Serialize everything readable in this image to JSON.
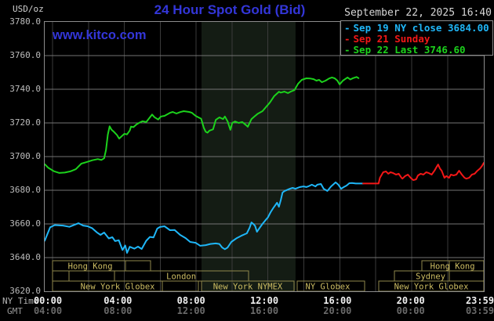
{
  "header": {
    "unit_label": "USD/oz",
    "title": "24 Hour Spot Gold (Bid)",
    "datetime": "September 22, 2025 16:40",
    "watermark": "www.kitco.com",
    "legend": [
      {
        "dash": "-",
        "label": "Sep 19 NY close 3684.00",
        "color": "#1fb6f7"
      },
      {
        "dash": "-",
        "label": "Sep 21 Sunday",
        "color": "#f21717"
      },
      {
        "dash": "-",
        "label": "Sep 22 Last 3746.60",
        "color": "#1cd21c"
      }
    ]
  },
  "colors": {
    "background": "#000000",
    "title_blue": "#3336d9",
    "frame": "#8c8c8c",
    "hgrid": "#757575",
    "vgrid": "#3a3a3a",
    "band": "#141c14",
    "session_border": "#8f874b",
    "session_text": "#cdbd63",
    "series_prev_close": "#1fb6f7",
    "series_sunday": "#f21717",
    "series_today": "#1cd21c"
  },
  "axis": {
    "ny_time_label": "NY Time",
    "gmt_label": "GMT",
    "ny_ticks": [
      "00:00",
      "04:00",
      "08:00",
      "12:00",
      "16:00",
      "20:00",
      "23:59"
    ],
    "gmt_ticks": [
      "04:00",
      "08:00",
      "12:00",
      "16:00",
      "20:00",
      "00:00",
      "03:59"
    ],
    "tick_hours": [
      0,
      4,
      8,
      12,
      16,
      20,
      23.983
    ],
    "y_tick_values": [
      3780,
      3760,
      3740,
      3720,
      3700,
      3680,
      3660,
      3640,
      3620
    ],
    "y_tick_labels": [
      "3780.0",
      "3760.0",
      "3740.0",
      "3720.0",
      "3700.0",
      "3680.0",
      "3660.0",
      "3640.0",
      "3620.0"
    ]
  },
  "sessions": {
    "rows": [
      [
        {
          "from": 0.43,
          "to": 4.41,
          "label": "Hong Kong",
          "labelAt": 2.49
        },
        {
          "from": 4.41,
          "to": 5.79,
          "label": ""
        },
        {
          "from": 20.61,
          "to": 24,
          "label": "Hong Kong",
          "labelAt": 22.29,
          "divider": 22.11
        }
      ],
      [
        {
          "from": 0.43,
          "to": 1.33,
          "label": ""
        },
        {
          "from": 1.33,
          "to": 3.81,
          "label": ""
        },
        {
          "from": 3.81,
          "to": 11.14,
          "label": "London",
          "labelAt": 7.46
        },
        {
          "from": 19.11,
          "to": 24,
          "label": "Sydney",
          "labelAt": 21.09,
          "divider": 22.11
        }
      ],
      [
        {
          "from": 0.43,
          "to": 6.43,
          "label": "New York Globex",
          "labelAt": 3.99
        },
        {
          "from": 6.43,
          "to": 8.4,
          "label": ""
        },
        {
          "from": 8.57,
          "to": 13.63,
          "label": "New York NYMEX",
          "labelAt": 11.1
        },
        {
          "from": 13.8,
          "to": 17.49,
          "label": "NY Globex",
          "labelAt": 15.47
        },
        {
          "from": 18.26,
          "to": 24,
          "label": "New York Globex",
          "labelAt": 21.13
        }
      ]
    ]
  },
  "chart_data": {
    "type": "line",
    "title": "24 Hour Spot Gold (Bid)",
    "xlabel": "NY Time (hours 00:00-23:59)",
    "ylabel": "USD/oz",
    "ylim": [
      3620,
      3780
    ],
    "xlim_hours": [
      0,
      24
    ],
    "grid": true,
    "ygrid_values": [
      3640,
      3660,
      3680,
      3700,
      3720,
      3740,
      3760
    ],
    "vgrid_hours": [
      0.43,
      2.39,
      4.35,
      6.32,
      8.28,
      10.24,
      12.2,
      14.17,
      16.13,
      18.09,
      20.06,
      22.02
    ],
    "nymex_band": {
      "from": 8.57,
      "to": 13.71
    },
    "series": [
      {
        "name": "Sep 22 (today, last 3746.60)",
        "color": "#1cd21c",
        "points": [
          [
            0,
            3695.5
          ],
          [
            0.2,
            3693.3
          ],
          [
            0.5,
            3691.3
          ],
          [
            0.8,
            3690.3
          ],
          [
            1.1,
            3690.5
          ],
          [
            1.4,
            3691.2
          ],
          [
            1.7,
            3692.5
          ],
          [
            2.0,
            3695.8
          ],
          [
            2.3,
            3696.8
          ],
          [
            2.6,
            3697.8
          ],
          [
            2.9,
            3698.5
          ],
          [
            3.1,
            3698.0
          ],
          [
            3.25,
            3699.0
          ],
          [
            3.35,
            3704.0
          ],
          [
            3.45,
            3713.0
          ],
          [
            3.55,
            3718.0
          ],
          [
            3.65,
            3716.0
          ],
          [
            3.8,
            3714.5
          ],
          [
            3.95,
            3712.8
          ],
          [
            4.07,
            3710.7
          ],
          [
            4.2,
            3712.0
          ],
          [
            4.35,
            3713.5
          ],
          [
            4.5,
            3713.2
          ],
          [
            4.65,
            3715.5
          ],
          [
            4.72,
            3717.8
          ],
          [
            4.85,
            3717.5
          ],
          [
            5.0,
            3719.0
          ],
          [
            5.15,
            3720.0
          ],
          [
            5.35,
            3721.0
          ],
          [
            5.55,
            3720.5
          ],
          [
            5.87,
            3725.0
          ],
          [
            6.0,
            3723.4
          ],
          [
            6.2,
            3722.0
          ],
          [
            6.35,
            3723.8
          ],
          [
            6.55,
            3724.2
          ],
          [
            6.85,
            3726.0
          ],
          [
            7.0,
            3726.5
          ],
          [
            7.2,
            3725.6
          ],
          [
            7.4,
            3726.4
          ],
          [
            7.6,
            3727.0
          ],
          [
            7.9,
            3726.5
          ],
          [
            8.05,
            3726.0
          ],
          [
            8.25,
            3724.2
          ],
          [
            8.4,
            3723.3
          ],
          [
            8.55,
            3722.5
          ],
          [
            8.7,
            3717.0
          ],
          [
            8.8,
            3714.8
          ],
          [
            8.9,
            3714.2
          ],
          [
            9.0,
            3715.4
          ],
          [
            9.2,
            3716.2
          ],
          [
            9.35,
            3721.8
          ],
          [
            9.55,
            3723.3
          ],
          [
            9.75,
            3722.3
          ],
          [
            9.85,
            3723.8
          ],
          [
            10.0,
            3720.9
          ],
          [
            10.15,
            3715.9
          ],
          [
            10.25,
            3720.0
          ],
          [
            10.4,
            3720.9
          ],
          [
            10.6,
            3720.0
          ],
          [
            10.8,
            3720.5
          ],
          [
            11.0,
            3718.7
          ],
          [
            11.1,
            3717.7
          ],
          [
            11.3,
            3722.3
          ],
          [
            11.45,
            3723.7
          ],
          [
            11.65,
            3725.5
          ],
          [
            11.9,
            3727.0
          ],
          [
            12.1,
            3729.5
          ],
          [
            12.3,
            3732.0
          ],
          [
            12.55,
            3736.0
          ],
          [
            12.8,
            3738.5
          ],
          [
            12.9,
            3738.0
          ],
          [
            13.1,
            3738.6
          ],
          [
            13.3,
            3737.7
          ],
          [
            13.45,
            3738.6
          ],
          [
            13.65,
            3739.5
          ],
          [
            13.85,
            3743.3
          ],
          [
            14.05,
            3745.6
          ],
          [
            14.3,
            3746.5
          ],
          [
            14.5,
            3746.4
          ],
          [
            14.7,
            3746.0
          ],
          [
            14.85,
            3745.1
          ],
          [
            15.0,
            3745.6
          ],
          [
            15.15,
            3744.2
          ],
          [
            15.35,
            3745.1
          ],
          [
            15.55,
            3746.4
          ],
          [
            15.7,
            3747.0
          ],
          [
            15.85,
            3746.5
          ],
          [
            16.0,
            3745.1
          ],
          [
            16.12,
            3742.9
          ],
          [
            16.3,
            3745.1
          ],
          [
            16.42,
            3746.0
          ],
          [
            16.55,
            3747.0
          ],
          [
            16.7,
            3745.8
          ],
          [
            16.85,
            3746.6
          ],
          [
            17.05,
            3747.3
          ],
          [
            17.15,
            3746.6
          ]
        ]
      },
      {
        "name": "Sep 19 NY close 3684.00",
        "color": "#1fb6f7",
        "points": [
          [
            0,
            3650.0
          ],
          [
            0.15,
            3654.0
          ],
          [
            0.3,
            3658.0
          ],
          [
            0.55,
            3659.3
          ],
          [
            1.0,
            3659.0
          ],
          [
            1.35,
            3658.3
          ],
          [
            1.65,
            3659.6
          ],
          [
            1.85,
            3660.4
          ],
          [
            2.1,
            3659.0
          ],
          [
            2.35,
            3658.6
          ],
          [
            2.6,
            3657.4
          ],
          [
            2.85,
            3655.0
          ],
          [
            3.05,
            3653.5
          ],
          [
            3.25,
            3654.9
          ],
          [
            3.5,
            3651.4
          ],
          [
            3.7,
            3652.1
          ],
          [
            3.85,
            3649.8
          ],
          [
            4.05,
            3650.3
          ],
          [
            4.25,
            3644.5
          ],
          [
            4.4,
            3647.2
          ],
          [
            4.5,
            3642.8
          ],
          [
            4.65,
            3646.4
          ],
          [
            4.9,
            3645.3
          ],
          [
            5.1,
            3646.5
          ],
          [
            5.3,
            3645.1
          ],
          [
            5.55,
            3650.0
          ],
          [
            5.75,
            3652.3
          ],
          [
            5.95,
            3652.0
          ],
          [
            6.15,
            3657.2
          ],
          [
            6.3,
            3658.2
          ],
          [
            6.55,
            3658.6
          ],
          [
            6.85,
            3656.3
          ],
          [
            7.1,
            3656.4
          ],
          [
            7.4,
            3653.5
          ],
          [
            7.7,
            3651.6
          ],
          [
            7.95,
            3649.3
          ],
          [
            8.25,
            3648.8
          ],
          [
            8.5,
            3647.0
          ],
          [
            8.8,
            3647.4
          ],
          [
            9.05,
            3648.1
          ],
          [
            9.35,
            3648.4
          ],
          [
            9.55,
            3648.1
          ],
          [
            9.7,
            3646.0
          ],
          [
            9.85,
            3645.0
          ],
          [
            10.0,
            3646.0
          ],
          [
            10.2,
            3649.3
          ],
          [
            10.5,
            3651.6
          ],
          [
            10.75,
            3653.0
          ],
          [
            11.05,
            3654.4
          ],
          [
            11.2,
            3657.7
          ],
          [
            11.3,
            3660.9
          ],
          [
            11.4,
            3660.0
          ],
          [
            11.5,
            3658.8
          ],
          [
            11.6,
            3655.3
          ],
          [
            11.75,
            3657.7
          ],
          [
            11.9,
            3660.0
          ],
          [
            12.05,
            3662.0
          ],
          [
            12.2,
            3663.9
          ],
          [
            12.35,
            3667.0
          ],
          [
            12.5,
            3669.6
          ],
          [
            12.7,
            3672.6
          ],
          [
            12.8,
            3670.2
          ],
          [
            12.9,
            3674.0
          ],
          [
            13.0,
            3678.6
          ],
          [
            13.1,
            3679.5
          ],
          [
            13.4,
            3680.9
          ],
          [
            13.55,
            3681.4
          ],
          [
            13.7,
            3680.9
          ],
          [
            13.95,
            3681.9
          ],
          [
            14.15,
            3682.3
          ],
          [
            14.3,
            3681.9
          ],
          [
            14.4,
            3682.3
          ],
          [
            14.6,
            3683.3
          ],
          [
            14.8,
            3682.3
          ],
          [
            14.9,
            3683.3
          ],
          [
            15.1,
            3683.7
          ],
          [
            15.25,
            3680.9
          ],
          [
            15.45,
            3679.6
          ],
          [
            15.65,
            3682.3
          ],
          [
            15.8,
            3683.7
          ],
          [
            15.9,
            3684.7
          ],
          [
            16.05,
            3683.3
          ],
          [
            16.2,
            3680.9
          ],
          [
            16.35,
            3681.9
          ],
          [
            16.5,
            3682.8
          ],
          [
            16.65,
            3684.2
          ],
          [
            16.8,
            3684.3
          ],
          [
            17.0,
            3684.0
          ],
          [
            17.4,
            3684.0
          ]
        ]
      },
      {
        "name": "Sep 21 Sunday",
        "color": "#f21717",
        "points": [
          [
            17.4,
            3684.0
          ],
          [
            18.25,
            3684.0
          ],
          [
            18.32,
            3687.4
          ],
          [
            18.5,
            3690.7
          ],
          [
            18.65,
            3691.2
          ],
          [
            18.78,
            3689.8
          ],
          [
            18.9,
            3690.7
          ],
          [
            19.05,
            3690.2
          ],
          [
            19.2,
            3689.3
          ],
          [
            19.35,
            3689.8
          ],
          [
            19.5,
            3687.4
          ],
          [
            19.55,
            3686.9
          ],
          [
            19.7,
            3688.4
          ],
          [
            19.85,
            3689.3
          ],
          [
            20.0,
            3687.4
          ],
          [
            20.15,
            3686.0
          ],
          [
            20.3,
            3686.5
          ],
          [
            20.4,
            3688.8
          ],
          [
            20.55,
            3689.8
          ],
          [
            20.7,
            3689.3
          ],
          [
            20.85,
            3690.7
          ],
          [
            21.0,
            3690.2
          ],
          [
            21.15,
            3689.3
          ],
          [
            21.3,
            3691.6
          ],
          [
            21.45,
            3694.4
          ],
          [
            21.5,
            3695.3
          ],
          [
            21.6,
            3693.0
          ],
          [
            21.7,
            3691.6
          ],
          [
            21.85,
            3687.4
          ],
          [
            21.95,
            3688.4
          ],
          [
            22.1,
            3687.4
          ],
          [
            22.2,
            3689.3
          ],
          [
            22.35,
            3688.8
          ],
          [
            22.5,
            3689.3
          ],
          [
            22.65,
            3691.6
          ],
          [
            22.8,
            3689.3
          ],
          [
            22.95,
            3687.4
          ],
          [
            23.05,
            3686.9
          ],
          [
            23.2,
            3687.4
          ],
          [
            23.35,
            3689.3
          ],
          [
            23.5,
            3689.8
          ],
          [
            23.65,
            3691.6
          ],
          [
            23.8,
            3693.0
          ],
          [
            23.9,
            3694.4
          ],
          [
            24.0,
            3696.3
          ]
        ]
      }
    ]
  }
}
